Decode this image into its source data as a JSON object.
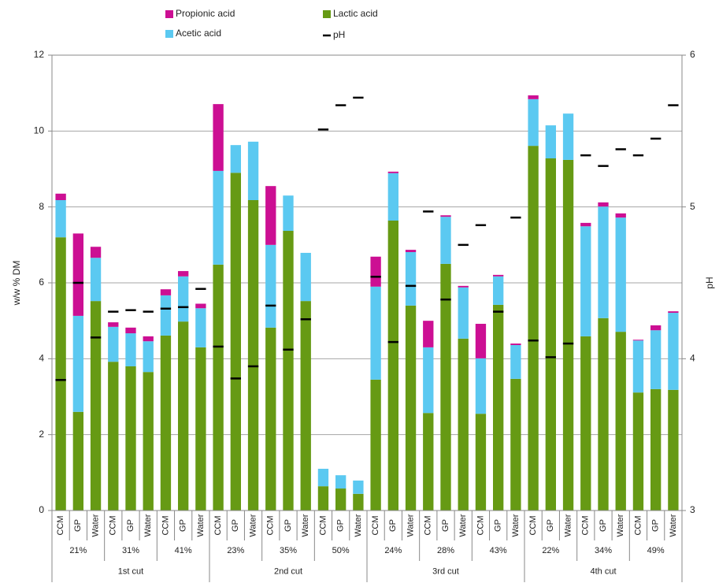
{
  "chart_data": {
    "type": "bar",
    "stacked": true,
    "y_label": "w/w % DM",
    "y2_label": "pH",
    "ylim": [
      0,
      12
    ],
    "yticks": [
      0,
      2,
      4,
      6,
      8,
      10,
      12
    ],
    "y2lim": [
      3,
      6
    ],
    "y2ticks": [
      3,
      4,
      5,
      6
    ],
    "grid": true,
    "categories": [
      "CCM",
      "GP",
      "Water",
      "CCM",
      "GP",
      "Water",
      "CCM",
      "GP",
      "Water",
      "CCM",
      "GP",
      "Water",
      "CCM",
      "GP",
      "Water",
      "CCM",
      "GP",
      "Water",
      "CCM",
      "GP",
      "Water",
      "CCM",
      "GP",
      "Water",
      "CCM",
      "GP",
      "Water",
      "CCM",
      "GP",
      "Water",
      "CCM",
      "GP",
      "Water",
      "CCM",
      "GP",
      "Water"
    ],
    "groups": [
      "21%",
      "31%",
      "41%",
      "23%",
      "35%",
      "50%",
      "24%",
      "28%",
      "43%",
      "22%",
      "34%",
      "49%"
    ],
    "cuts": [
      "1st cut",
      "2nd cut",
      "3rd cut",
      "4th cut"
    ],
    "series": [
      {
        "name": "Lactic acid",
        "color": "#669a14",
        "values": [
          7.2,
          2.6,
          5.52,
          3.92,
          3.8,
          3.65,
          4.61,
          4.98,
          4.3,
          6.48,
          8.9,
          8.18,
          4.82,
          7.37,
          5.52,
          0.64,
          0.58,
          0.44,
          3.45,
          7.64,
          5.4,
          2.57,
          6.5,
          4.53,
          2.55,
          5.42,
          3.47,
          9.61,
          9.28,
          9.24,
          4.59,
          5.07,
          4.71,
          3.11,
          3.2,
          3.18
        ]
      },
      {
        "name": "Acetic acid",
        "color": "#5bc9f1",
        "values": [
          0.98,
          2.53,
          1.14,
          0.92,
          0.87,
          0.81,
          1.06,
          1.19,
          1.03,
          2.47,
          0.73,
          1.54,
          2.18,
          0.93,
          1.27,
          0.46,
          0.35,
          0.35,
          2.45,
          1.25,
          1.41,
          1.73,
          1.24,
          1.35,
          1.46,
          0.75,
          0.89,
          1.23,
          0.87,
          1.22,
          2.9,
          2.94,
          3.01,
          1.37,
          1.55,
          2.03
        ]
      },
      {
        "name": "Propionic acid",
        "color": "#cc0f93",
        "values": [
          0.17,
          2.17,
          0.29,
          0.12,
          0.15,
          0.13,
          0.16,
          0.14,
          0.12,
          1.76,
          0,
          0,
          1.55,
          0,
          0,
          0,
          0,
          0,
          0.79,
          0.04,
          0.06,
          0.7,
          0.04,
          0.04,
          0.91,
          0.04,
          0.04,
          0.1,
          0,
          0,
          0.09,
          0.11,
          0.11,
          0.02,
          0.13,
          0.04
        ]
      },
      {
        "name": "pH",
        "color": "#000000",
        "axis": "y2",
        "marker": "dash",
        "values": [
          3.86,
          4.5,
          4.14,
          4.31,
          4.32,
          4.31,
          4.33,
          4.34,
          4.46,
          4.08,
          3.87,
          3.95,
          4.35,
          4.06,
          4.26,
          5.51,
          5.67,
          5.72,
          4.54,
          4.11,
          4.48,
          4.97,
          4.39,
          4.75,
          4.88,
          4.31,
          4.93,
          4.12,
          4.01,
          4.1,
          5.34,
          5.27,
          5.38,
          5.34,
          5.45,
          5.67
        ]
      }
    ]
  }
}
